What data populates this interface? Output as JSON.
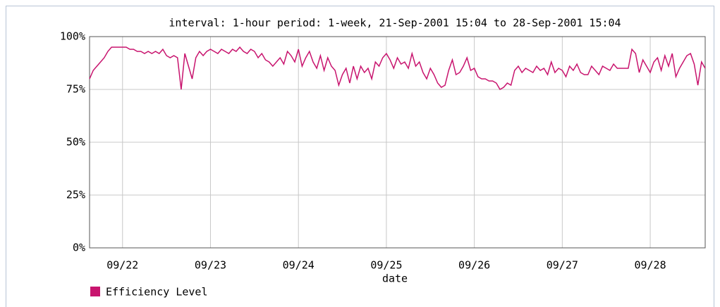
{
  "chart_data": {
    "type": "line",
    "title": "interval: 1-hour  period: 1-week, 21-Sep-2001 15:04 to 28-Sep-2001 15:04",
    "xlabel": "date",
    "x": [
      0,
      1,
      2,
      3,
      4,
      5,
      6,
      7,
      8,
      9,
      10,
      11,
      12,
      13,
      14,
      15,
      16,
      17,
      18,
      19,
      20,
      21,
      22,
      23,
      24,
      25,
      26,
      27,
      28,
      29,
      30,
      31,
      32,
      33,
      34,
      35,
      36,
      37,
      38,
      39,
      40,
      41,
      42,
      43,
      44,
      45,
      46,
      47,
      48,
      49,
      50,
      51,
      52,
      53,
      54,
      55,
      56,
      57,
      58,
      59,
      60,
      61,
      62,
      63,
      64,
      65,
      66,
      67,
      68,
      69,
      70,
      71,
      72,
      73,
      74,
      75,
      76,
      77,
      78,
      79,
      80,
      81,
      82,
      83,
      84,
      85,
      86,
      87,
      88,
      89,
      90,
      91,
      92,
      93,
      94,
      95,
      96,
      97,
      98,
      99,
      100,
      101,
      102,
      103,
      104,
      105,
      106,
      107,
      108,
      109,
      110,
      111,
      112,
      113,
      114,
      115,
      116,
      117,
      118,
      119,
      120,
      121,
      122,
      123,
      124,
      125,
      126,
      127,
      128,
      129,
      130,
      131,
      132,
      133,
      134,
      135,
      136,
      137,
      138,
      139,
      140,
      141,
      142,
      143,
      144,
      145,
      146,
      147,
      148,
      149,
      150,
      151,
      152,
      153,
      154,
      155,
      156,
      157,
      158,
      159,
      160,
      161,
      162,
      163,
      164,
      165,
      166,
      167,
      168
    ],
    "series": [
      {
        "name": "Efficiency Level",
        "color": "#c8146e",
        "values": [
          80,
          84,
          86,
          88,
          90,
          93,
          95,
          95,
          95,
          95,
          95,
          94,
          94,
          93,
          93,
          92,
          93,
          92,
          93,
          92,
          94,
          91,
          90,
          91,
          90,
          75,
          92,
          86,
          80,
          90,
          93,
          91,
          93,
          94,
          93,
          92,
          94,
          93,
          92,
          94,
          93,
          95,
          93,
          92,
          94,
          93,
          90,
          92,
          89,
          88,
          86,
          88,
          90,
          87,
          93,
          91,
          88,
          94,
          86,
          90,
          93,
          88,
          85,
          91,
          84,
          90,
          86,
          84,
          77,
          82,
          85,
          78,
          86,
          80,
          86,
          83,
          85,
          80,
          88,
          86,
          90,
          92,
          89,
          85,
          90,
          87,
          88,
          85,
          92,
          86,
          88,
          83,
          80,
          85,
          82,
          78,
          76,
          77,
          84,
          89,
          82,
          83,
          86,
          90,
          84,
          85,
          81,
          80,
          80,
          79,
          79,
          78,
          75,
          76,
          78,
          77,
          84,
          86,
          83,
          85,
          84,
          83,
          86,
          84,
          85,
          82,
          88,
          83,
          85,
          84,
          81,
          86,
          84,
          87,
          83,
          82,
          82,
          86,
          84,
          82,
          86,
          85,
          84,
          87,
          85,
          85,
          85,
          85,
          94,
          92,
          83,
          89,
          86,
          83,
          88,
          90,
          84,
          91,
          86,
          92,
          81,
          85,
          88,
          91,
          92,
          87,
          77,
          88,
          85
        ]
      }
    ],
    "xlim": [
      0,
      168
    ],
    "xticks": [
      {
        "value": 9,
        "label": "09/22"
      },
      {
        "value": 33,
        "label": "09/23"
      },
      {
        "value": 57,
        "label": "09/24"
      },
      {
        "value": 81,
        "label": "09/25"
      },
      {
        "value": 105,
        "label": "09/26"
      },
      {
        "value": 129,
        "label": "09/27"
      },
      {
        "value": 153,
        "label": "09/28"
      }
    ],
    "ylim": [
      0,
      100
    ],
    "yticks": [
      {
        "value": 0,
        "label": "0%"
      },
      {
        "value": 25,
        "label": "25%"
      },
      {
        "value": 50,
        "label": "50%"
      },
      {
        "value": 75,
        "label": "75%"
      },
      {
        "value": 100,
        "label": "100%"
      }
    ],
    "grid": true
  }
}
